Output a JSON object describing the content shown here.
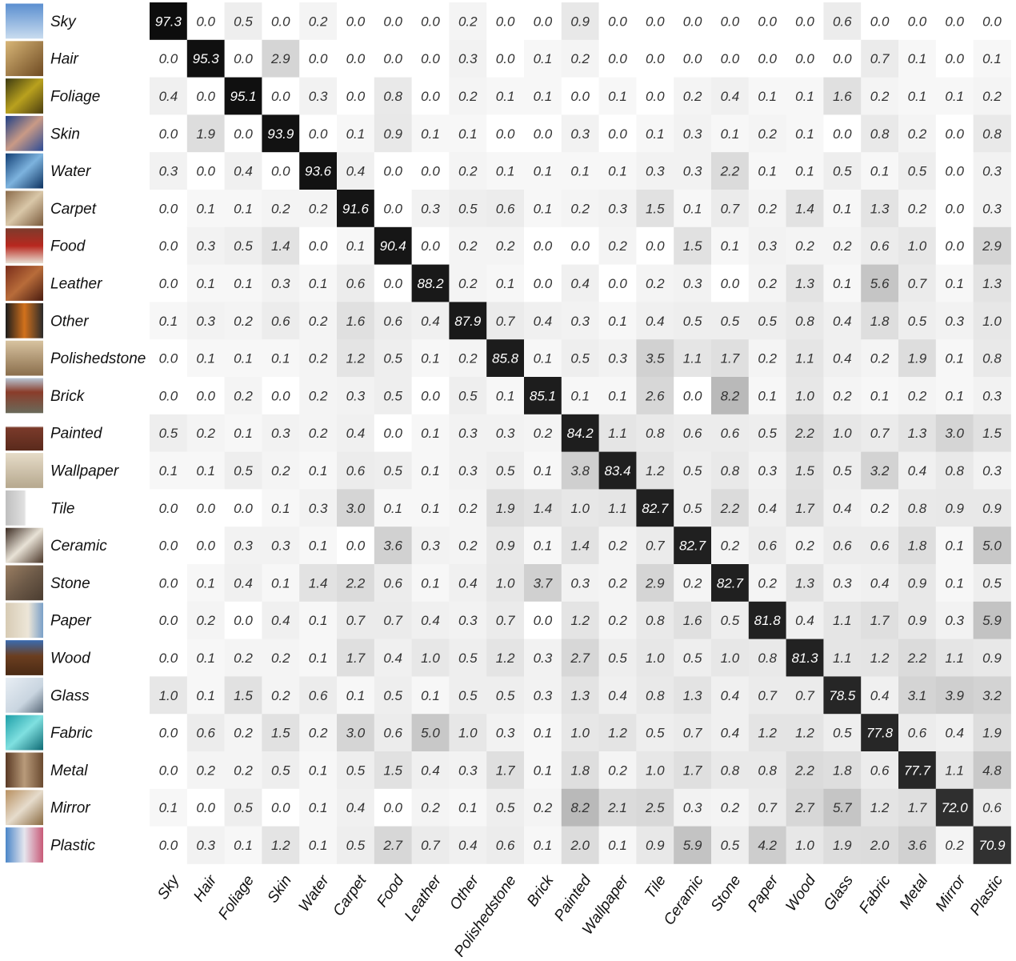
{
  "chart_data": {
    "type": "heatmap",
    "title": "",
    "xlabel": "",
    "ylabel": "",
    "color_scale": {
      "low": "#ffffff",
      "high": "#0a0a0a"
    },
    "rows": [
      "Sky",
      "Hair",
      "Foliage",
      "Skin",
      "Water",
      "Carpet",
      "Food",
      "Leather",
      "Other",
      "Polishedstone",
      "Brick",
      "Painted",
      "Wallpaper",
      "Tile",
      "Ceramic",
      "Stone",
      "Paper",
      "Wood",
      "Glass",
      "Fabric",
      "Metal",
      "Mirror",
      "Plastic"
    ],
    "columns": [
      "Sky",
      "Hair",
      "Foliage",
      "Skin",
      "Water",
      "Carpet",
      "Food",
      "Leather",
      "Other",
      "Polishedstone",
      "Brick",
      "Painted",
      "Wallpaper",
      "Tile",
      "Ceramic",
      "Stone",
      "Paper",
      "Wood",
      "Glass",
      "Fabric",
      "Metal",
      "Mirror",
      "Plastic"
    ],
    "values": [
      [
        "97.3",
        "0.0",
        "0.5",
        "0.0",
        "0.2",
        "0.0",
        "0.0",
        "0.0",
        "0.2",
        "0.0",
        "0.0",
        "0.9",
        "0.0",
        "0.0",
        "0.0",
        "0.0",
        "0.0",
        "0.0",
        "0.6",
        "0.0",
        "0.0",
        "0.0",
        "0.0"
      ],
      [
        "0.0",
        "95.3",
        "0.0",
        "2.9",
        "0.0",
        "0.0",
        "0.0",
        "0.0",
        "0.3",
        "0.0",
        "0.1",
        "0.2",
        "0.0",
        "0.0",
        "0.0",
        "0.0",
        "0.0",
        "0.0",
        "0.0",
        "0.7",
        "0.1",
        "0.0",
        "0.1"
      ],
      [
        "0.4",
        "0.0",
        "95.1",
        "0.0",
        "0.3",
        "0.0",
        "0.8",
        "0.0",
        "0.2",
        "0.1",
        "0.1",
        "0.0",
        "0.1",
        "0.0",
        "0.2",
        "0.4",
        "0.1",
        "0.1",
        "1.6",
        "0.2",
        "0.1",
        "0.1",
        "0.2"
      ],
      [
        "0.0",
        "1.9",
        "0.0",
        "93.9",
        "0.0",
        "0.1",
        "0.9",
        "0.1",
        "0.1",
        "0.0",
        "0.0",
        "0.3",
        "0.0",
        "0.1",
        "0.3",
        "0.1",
        "0.2",
        "0.1",
        "0.0",
        "0.8",
        "0.2",
        "0.0",
        "0.8"
      ],
      [
        "0.3",
        "0.0",
        "0.4",
        "0.0",
        "93.6",
        "0.4",
        "0.0",
        "0.0",
        "0.2",
        "0.1",
        "0.1",
        "0.1",
        "0.1",
        "0.3",
        "0.3",
        "2.2",
        "0.1",
        "0.1",
        "0.5",
        "0.1",
        "0.5",
        "0.0",
        "0.3"
      ],
      [
        "0.0",
        "0.1",
        "0.1",
        "0.2",
        "0.2",
        "91.6",
        "0.0",
        "0.3",
        "0.5",
        "0.6",
        "0.1",
        "0.2",
        "0.3",
        "1.5",
        "0.1",
        "0.7",
        "0.2",
        "1.4",
        "0.1",
        "1.3",
        "0.2",
        "0.0",
        "0.3"
      ],
      [
        "0.0",
        "0.3",
        "0.5",
        "1.4",
        "0.0",
        "0.1",
        "90.4",
        "0.0",
        "0.2",
        "0.2",
        "0.0",
        "0.0",
        "0.2",
        "0.0",
        "1.5",
        "0.1",
        "0.3",
        "0.2",
        "0.2",
        "0.6",
        "1.0",
        "0.0",
        "2.9"
      ],
      [
        "0.0",
        "0.1",
        "0.1",
        "0.3",
        "0.1",
        "0.6",
        "0.0",
        "88.2",
        "0.2",
        "0.1",
        "0.0",
        "0.4",
        "0.0",
        "0.2",
        "0.3",
        "0.0",
        "0.2",
        "1.3",
        "0.1",
        "5.6",
        "0.7",
        "0.1",
        "1.3"
      ],
      [
        "0.1",
        "0.3",
        "0.2",
        "0.6",
        "0.2",
        "1.6",
        "0.6",
        "0.4",
        "87.9",
        "0.7",
        "0.4",
        "0.3",
        "0.1",
        "0.4",
        "0.5",
        "0.5",
        "0.5",
        "0.8",
        "0.4",
        "1.8",
        "0.5",
        "0.3",
        "1.0"
      ],
      [
        "0.0",
        "0.1",
        "0.1",
        "0.1",
        "0.2",
        "1.2",
        "0.5",
        "0.1",
        "0.2",
        "85.8",
        "0.1",
        "0.5",
        "0.3",
        "3.5",
        "1.1",
        "1.7",
        "0.2",
        "1.1",
        "0.4",
        "0.2",
        "1.9",
        "0.1",
        "0.8"
      ],
      [
        "0.0",
        "0.0",
        "0.2",
        "0.0",
        "0.2",
        "0.3",
        "0.5",
        "0.0",
        "0.5",
        "0.1",
        "85.1",
        "0.1",
        "0.1",
        "2.6",
        "0.0",
        "8.2",
        "0.1",
        "1.0",
        "0.2",
        "0.1",
        "0.2",
        "0.1",
        "0.3"
      ],
      [
        "0.5",
        "0.2",
        "0.1",
        "0.3",
        "0.2",
        "0.4",
        "0.0",
        "0.1",
        "0.3",
        "0.3",
        "0.2",
        "84.2",
        "1.1",
        "0.8",
        "0.6",
        "0.6",
        "0.5",
        "2.2",
        "1.0",
        "0.7",
        "1.3",
        "3.0",
        "1.5"
      ],
      [
        "0.1",
        "0.1",
        "0.5",
        "0.2",
        "0.1",
        "0.6",
        "0.5",
        "0.1",
        "0.3",
        "0.5",
        "0.1",
        "3.8",
        "83.4",
        "1.2",
        "0.5",
        "0.8",
        "0.3",
        "1.5",
        "0.5",
        "3.2",
        "0.4",
        "0.8",
        "0.3"
      ],
      [
        "0.0",
        "0.0",
        "0.0",
        "0.1",
        "0.3",
        "3.0",
        "0.1",
        "0.1",
        "0.2",
        "1.9",
        "1.4",
        "1.0",
        "1.1",
        "82.7",
        "0.5",
        "2.2",
        "0.4",
        "1.7",
        "0.4",
        "0.2",
        "0.8",
        "0.9",
        "0.9"
      ],
      [
        "0.0",
        "0.0",
        "0.3",
        "0.3",
        "0.1",
        "0.0",
        "3.6",
        "0.3",
        "0.2",
        "0.9",
        "0.1",
        "1.4",
        "0.2",
        "0.7",
        "82.7",
        "0.2",
        "0.6",
        "0.2",
        "0.6",
        "0.6",
        "1.8",
        "0.1",
        "5.0"
      ],
      [
        "0.0",
        "0.1",
        "0.4",
        "0.1",
        "1.4",
        "2.2",
        "0.6",
        "0.1",
        "0.4",
        "1.0",
        "3.7",
        "0.3",
        "0.2",
        "2.9",
        "0.2",
        "82.7",
        "0.2",
        "1.3",
        "0.3",
        "0.4",
        "0.9",
        "0.1",
        "0.5"
      ],
      [
        "0.0",
        "0.2",
        "0.0",
        "0.4",
        "0.1",
        "0.7",
        "0.7",
        "0.4",
        "0.3",
        "0.7",
        "0.0",
        "1.2",
        "0.2",
        "0.8",
        "1.6",
        "0.5",
        "81.8",
        "0.4",
        "1.1",
        "1.7",
        "0.9",
        "0.3",
        "5.9"
      ],
      [
        "0.0",
        "0.1",
        "0.2",
        "0.2",
        "0.1",
        "1.7",
        "0.4",
        "1.0",
        "0.5",
        "1.2",
        "0.3",
        "2.7",
        "0.5",
        "1.0",
        "0.5",
        "1.0",
        "0.8",
        "81.3",
        "1.1",
        "1.2",
        "2.2",
        "1.1",
        "0.9"
      ],
      [
        "1.0",
        "0.1",
        "1.5",
        "0.2",
        "0.6",
        "0.1",
        "0.5",
        "0.1",
        "0.5",
        "0.5",
        "0.3",
        "1.3",
        "0.4",
        "0.8",
        "1.3",
        "0.4",
        "0.7",
        "0.7",
        "78.5",
        "0.4",
        "3.1",
        "3.9",
        "3.2"
      ],
      [
        "0.0",
        "0.6",
        "0.2",
        "1.5",
        "0.2",
        "3.0",
        "0.6",
        "5.0",
        "1.0",
        "0.3",
        "0.1",
        "1.0",
        "1.2",
        "0.5",
        "0.7",
        "0.4",
        "1.2",
        "1.2",
        "0.5",
        "77.8",
        "0.6",
        "0.4",
        "1.9"
      ],
      [
        "0.0",
        "0.2",
        "0.2",
        "0.5",
        "0.1",
        "0.5",
        "1.5",
        "0.4",
        "0.3",
        "1.7",
        "0.1",
        "1.8",
        "0.2",
        "1.0",
        "1.7",
        "0.8",
        "0.8",
        "2.2",
        "1.8",
        "0.6",
        "77.7",
        "1.1",
        "4.8"
      ],
      [
        "0.1",
        "0.0",
        "0.5",
        "0.0",
        "0.1",
        "0.4",
        "0.0",
        "0.2",
        "0.1",
        "0.5",
        "0.2",
        "8.2",
        "2.1",
        "2.5",
        "0.3",
        "0.2",
        "0.7",
        "2.7",
        "5.7",
        "1.2",
        "1.7",
        "72.0",
        "0.6"
      ],
      [
        "0.0",
        "0.3",
        "0.1",
        "1.2",
        "0.1",
        "0.5",
        "2.7",
        "0.7",
        "0.4",
        "0.6",
        "0.1",
        "2.0",
        "0.1",
        "0.9",
        "5.9",
        "0.5",
        "4.2",
        "1.0",
        "1.9",
        "2.0",
        "3.6",
        "0.2",
        "70.9"
      ]
    ],
    "row_thumbnails": [
      "sky",
      "hair",
      "foliage",
      "skin",
      "water",
      "carpet",
      "food",
      "leather",
      "other",
      "polishedstone",
      "brick",
      "painted",
      "wallpaper",
      "tile",
      "ceramic",
      "stone",
      "paper",
      "wood",
      "glass",
      "fabric",
      "metal",
      "mirror",
      "plastic"
    ]
  }
}
